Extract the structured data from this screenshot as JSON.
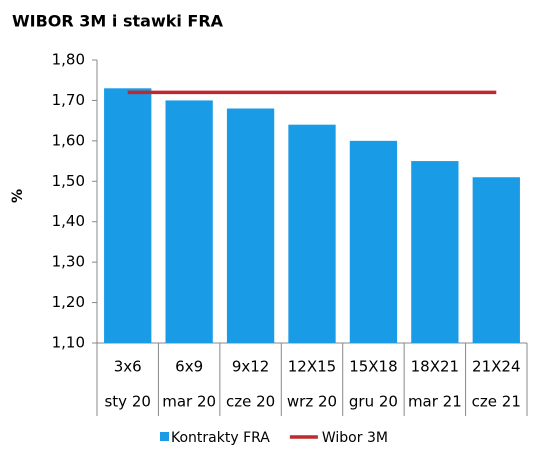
{
  "chart_data": {
    "type": "bar",
    "title": "WIBOR 3M i stawki FRA",
    "ylabel": "%",
    "categories": [
      [
        "3x6",
        "sty 20"
      ],
      [
        "6x9",
        "mar 20"
      ],
      [
        "9x12",
        "cze 20"
      ],
      [
        "12X15",
        "wrz 20"
      ],
      [
        "15X18",
        "gru 20"
      ],
      [
        "18X21",
        "mar 21"
      ],
      [
        "21X24",
        "cze 21"
      ]
    ],
    "series": [
      {
        "name": "Kontrakty FRA",
        "type": "bar",
        "color": "#1a9be6",
        "values": [
          1.73,
          1.7,
          1.68,
          1.64,
          1.6,
          1.55,
          1.51
        ]
      },
      {
        "name": "Wibor 3M",
        "type": "line",
        "color": "#c0282d",
        "values": [
          1.72,
          1.72,
          1.72,
          1.72,
          1.72,
          1.72,
          1.72
        ]
      }
    ],
    "ylim": [
      1.1,
      1.8
    ],
    "yticks": [
      {
        "value": 1.1,
        "label": "1,10"
      },
      {
        "value": 1.2,
        "label": "1,20"
      },
      {
        "value": 1.3,
        "label": "1,30"
      },
      {
        "value": 1.4,
        "label": "1,40"
      },
      {
        "value": 1.5,
        "label": "1,50"
      },
      {
        "value": 1.6,
        "label": "1,60"
      },
      {
        "value": 1.7,
        "label": "1,70"
      },
      {
        "value": 1.8,
        "label": "1,80"
      }
    ],
    "legend": "bottom"
  }
}
